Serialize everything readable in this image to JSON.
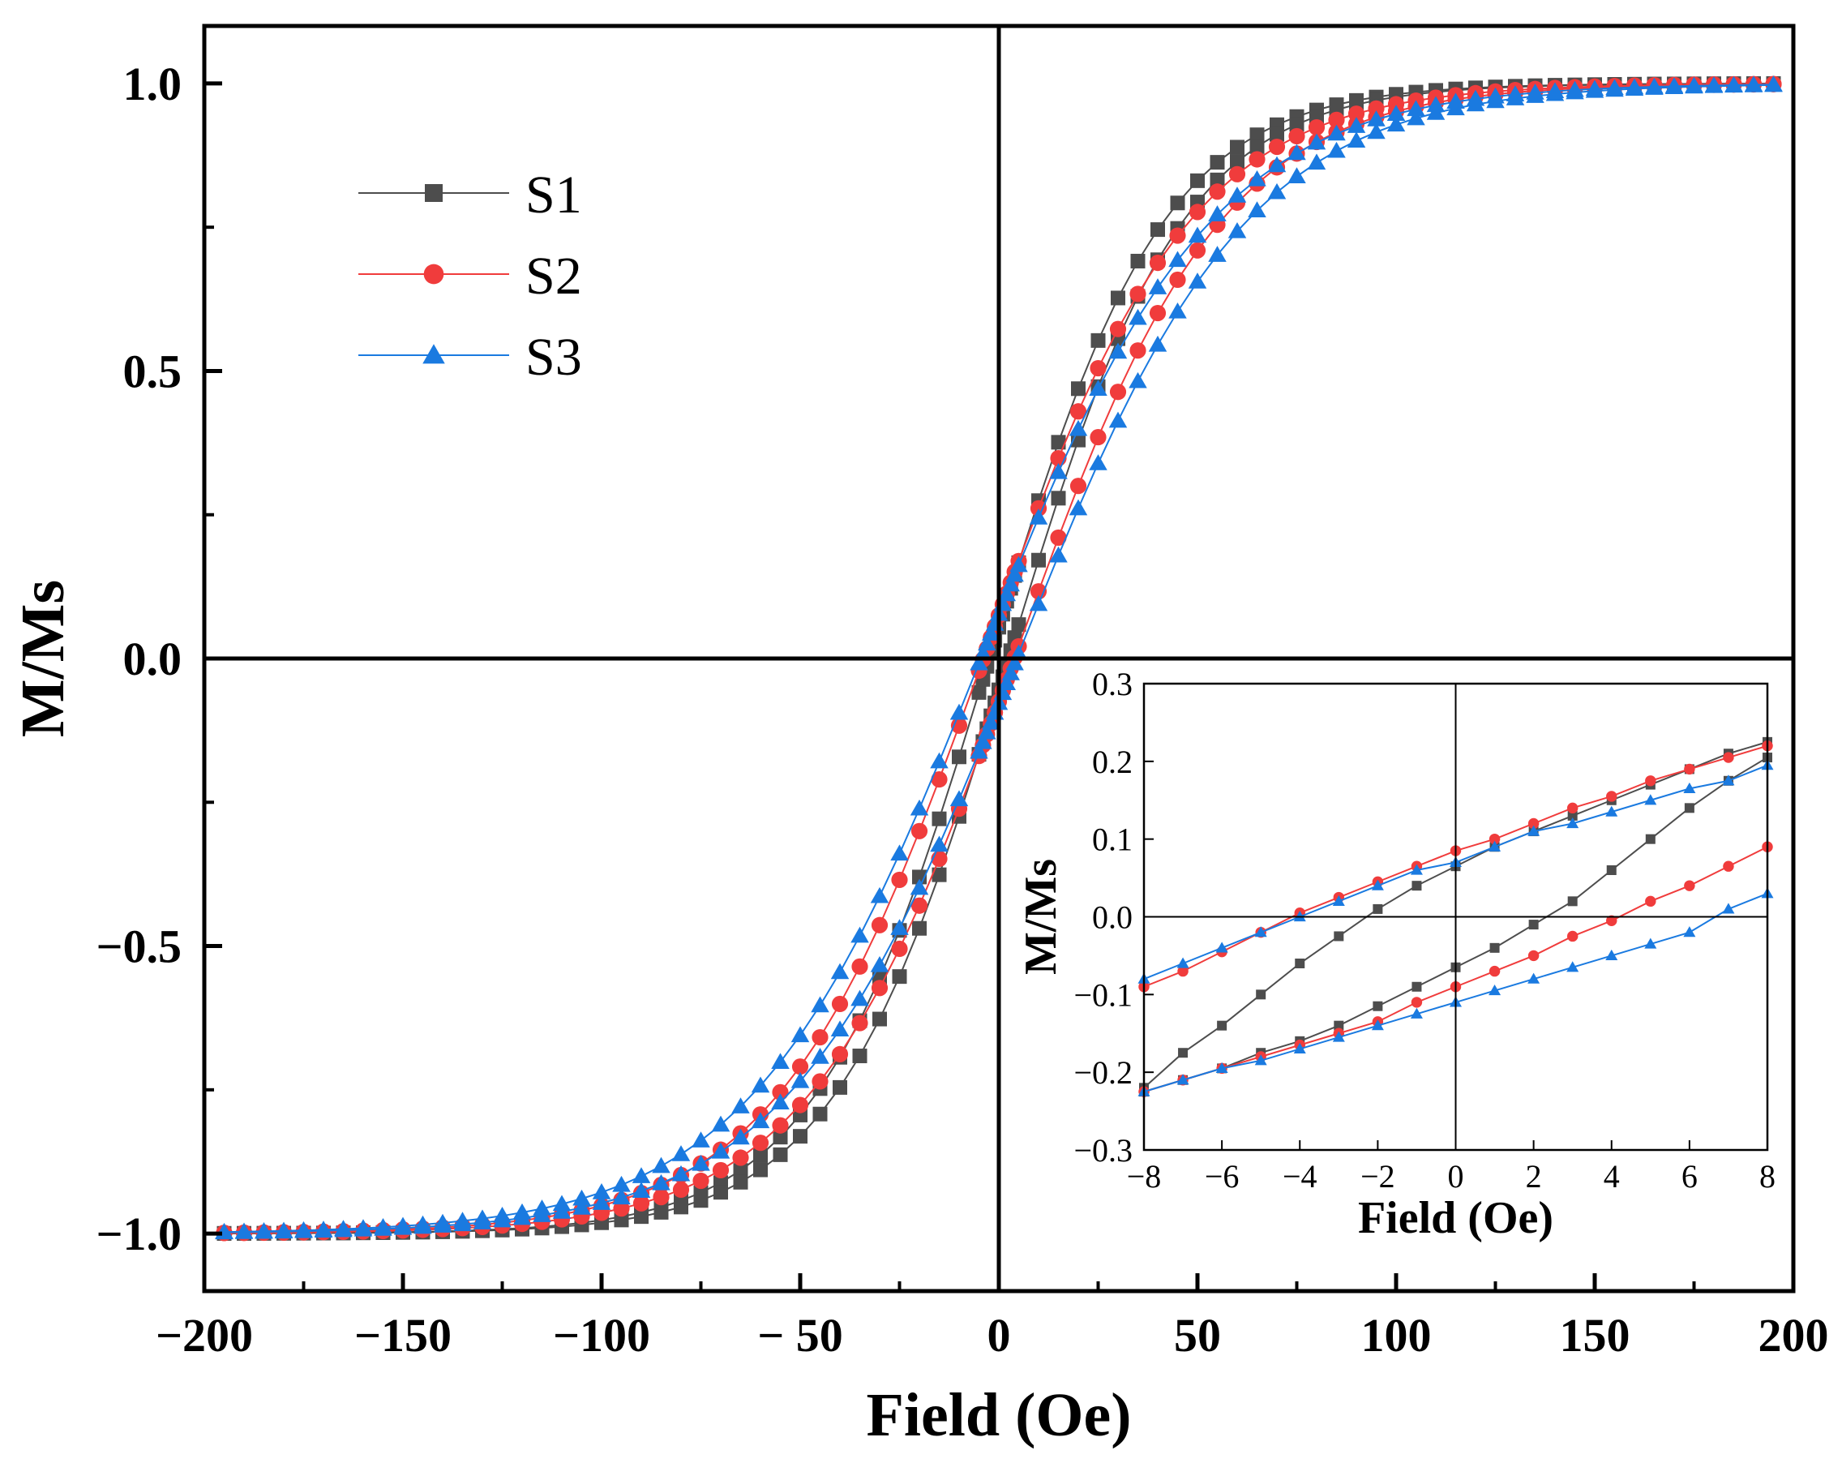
{
  "chart_data": [
    {
      "type": "line",
      "name": "main-hysteresis",
      "title": "",
      "xlabel": "Field (Oe)",
      "ylabel": "M/Ms",
      "xlim": [
        -200,
        200
      ],
      "ylim": [
        -1.1,
        1.1
      ],
      "xticks": [
        -200,
        -150,
        -100,
        -50,
        0,
        50,
        100,
        150,
        200
      ],
      "xtick_labels": [
        "−200",
        "−150",
        "−100",
        "− 50",
        "0",
        "50",
        "100",
        "150",
        "200"
      ],
      "yticks": [
        -1.0,
        -0.5,
        0.0,
        0.5,
        1.0
      ],
      "ytick_labels": [
        "−1.0",
        "−0.5",
        "0.0",
        "0.5",
        "1.0"
      ],
      "grid": false,
      "legend_position": "top-left",
      "legend": [
        "S1",
        "S2",
        "S3"
      ],
      "series": [
        {
          "name": "S1",
          "color": "#4d4d4d",
          "marker": "square",
          "Hc": 2.4,
          "width": 44
        },
        {
          "name": "S2",
          "color": "#f03c3c",
          "marker": "circle",
          "Hc": 3.9,
          "width": 52
        },
        {
          "name": "S3",
          "color": "#1a7ae0",
          "marker": "triangle",
          "Hc": 4.5,
          "width": 58
        }
      ]
    },
    {
      "type": "line",
      "name": "inset-low-field",
      "xlabel": "Field (Oe)",
      "ylabel": "M/Ms",
      "xlim": [
        -8,
        8
      ],
      "ylim": [
        -0.3,
        0.3
      ],
      "xticks": [
        -8,
        -6,
        -4,
        -2,
        0,
        2,
        4,
        6,
        8
      ],
      "xtick_labels": [
        "−8",
        "−6",
        "−4",
        "−2",
        "0",
        "2",
        "4",
        "6",
        "8"
      ],
      "yticks": [
        -0.3,
        -0.2,
        -0.1,
        0.0,
        0.1,
        0.2,
        0.3
      ],
      "ytick_labels": [
        "−0.3",
        "−0.2",
        "−0.1",
        "0.0",
        "0.1",
        "0.2",
        "0.3"
      ],
      "x": [
        -8,
        -7,
        -6,
        -5,
        -4,
        -3,
        -2,
        -1,
        0,
        1,
        2,
        3,
        4,
        5,
        6,
        7,
        8
      ],
      "series": [
        {
          "name": "S1",
          "color": "#4d4d4d",
          "marker": "square",
          "upper": [
            -0.22,
            -0.175,
            -0.14,
            -0.1,
            -0.06,
            -0.025,
            0.01,
            0.04,
            0.065,
            0.09,
            0.11,
            0.13,
            0.15,
            0.17,
            0.19,
            0.21,
            0.225
          ],
          "lower": [
            -0.225,
            -0.21,
            -0.195,
            -0.175,
            -0.16,
            -0.14,
            -0.115,
            -0.09,
            -0.065,
            -0.04,
            -0.01,
            0.02,
            0.06,
            0.1,
            0.14,
            0.175,
            0.205
          ]
        },
        {
          "name": "S2",
          "color": "#f03c3c",
          "marker": "circle",
          "upper": [
            -0.09,
            -0.07,
            -0.045,
            -0.02,
            0.005,
            0.025,
            0.045,
            0.065,
            0.085,
            0.1,
            0.12,
            0.14,
            0.155,
            0.175,
            0.19,
            0.205,
            0.22
          ],
          "lower": [
            -0.225,
            -0.21,
            -0.195,
            -0.18,
            -0.165,
            -0.15,
            -0.135,
            -0.11,
            -0.09,
            -0.07,
            -0.05,
            -0.025,
            -0.005,
            0.02,
            0.04,
            0.065,
            0.09
          ]
        },
        {
          "name": "S3",
          "color": "#1a7ae0",
          "marker": "triangle",
          "upper": [
            -0.08,
            -0.06,
            -0.04,
            -0.02,
            0.0,
            0.02,
            0.04,
            0.06,
            0.07,
            0.09,
            0.11,
            0.12,
            0.135,
            0.15,
            0.165,
            0.175,
            0.195
          ],
          "lower": [
            -0.225,
            -0.21,
            -0.195,
            -0.185,
            -0.17,
            -0.155,
            -0.14,
            -0.125,
            -0.11,
            -0.095,
            -0.08,
            -0.065,
            -0.05,
            -0.035,
            -0.02,
            0.01,
            0.03
          ]
        }
      ]
    }
  ]
}
